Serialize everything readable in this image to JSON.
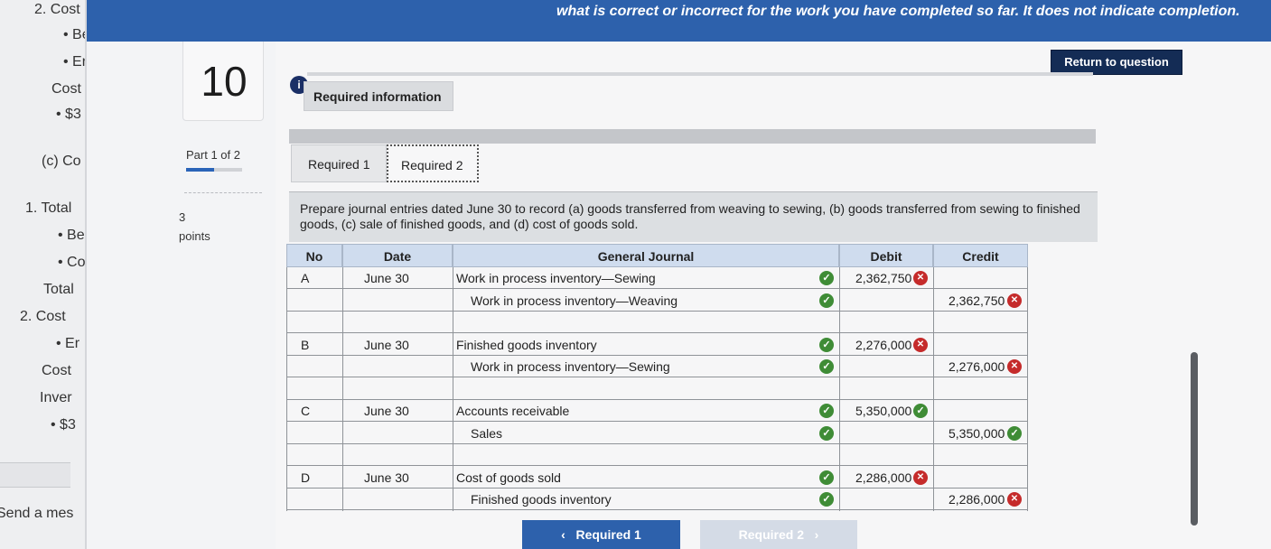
{
  "left_panel": {
    "items": [
      "2. Cost",
      "• Be",
      "• Er",
      "Cost",
      "• $3",
      "(c) Co",
      "1. Total",
      "• Be",
      "• Co",
      "Total",
      "2. Cost",
      "• Er",
      "Cost",
      "Inver",
      "• $3"
    ],
    "send_message": "Send a mes"
  },
  "question": {
    "number": "10",
    "part_label": "Part 1 of 2",
    "part_progress": 0.5,
    "points_value": "3",
    "points_label": "points"
  },
  "banner": {
    "text": "what is correct or incorrect for the work you have completed so far. It does not indicate completion."
  },
  "return_button": "Return to question",
  "info_icon": "i",
  "required_information": "Required information",
  "tabs": [
    {
      "label": "Required 1"
    },
    {
      "label": "Required 2"
    }
  ],
  "instruction": "Prepare journal entries dated June 30 to record (a) goods transferred from weaving to sewing, (b) goods transferred from sewing to finished goods, (c) sale of finished goods, and (d) cost of goods sold.",
  "journal": {
    "headers": {
      "no": "No",
      "date": "Date",
      "journal": "General Journal",
      "debit": "Debit",
      "credit": "Credit"
    },
    "rows": [
      {
        "no": "A",
        "date": "June 30",
        "account": "Work in process inventory—Sewing",
        "indent": false,
        "debit": "2,362,750",
        "debit_status": "incorrect",
        "credit": "",
        "credit_status": ""
      },
      {
        "no": "",
        "date": "",
        "account": "Work in process inventory—Weaving",
        "indent": true,
        "debit": "",
        "debit_status": "",
        "credit": "2,362,750",
        "credit_status": "incorrect"
      },
      {
        "no": "",
        "date": "",
        "account": "",
        "indent": false,
        "debit": "",
        "debit_status": "",
        "credit": "",
        "credit_status": ""
      },
      {
        "no": "B",
        "date": "June 30",
        "account": "Finished goods inventory",
        "indent": false,
        "debit": "2,276,000",
        "debit_status": "incorrect",
        "credit": "",
        "credit_status": ""
      },
      {
        "no": "",
        "date": "",
        "account": "Work in process inventory—Sewing",
        "indent": true,
        "debit": "",
        "debit_status": "",
        "credit": "2,276,000",
        "credit_status": "incorrect"
      },
      {
        "no": "",
        "date": "",
        "account": "",
        "indent": false,
        "debit": "",
        "debit_status": "",
        "credit": "",
        "credit_status": ""
      },
      {
        "no": "C",
        "date": "June 30",
        "account": "Accounts receivable",
        "indent": false,
        "debit": "5,350,000",
        "debit_status": "correct",
        "credit": "",
        "credit_status": ""
      },
      {
        "no": "",
        "date": "",
        "account": "Sales",
        "indent": true,
        "debit": "",
        "debit_status": "",
        "credit": "5,350,000",
        "credit_status": "correct"
      },
      {
        "no": "",
        "date": "",
        "account": "",
        "indent": false,
        "debit": "",
        "debit_status": "",
        "credit": "",
        "credit_status": ""
      },
      {
        "no": "D",
        "date": "June 30",
        "account": "Cost of goods sold",
        "indent": false,
        "debit": "2,286,000",
        "debit_status": "incorrect",
        "credit": "",
        "credit_status": ""
      },
      {
        "no": "",
        "date": "",
        "account": "Finished goods inventory",
        "indent": true,
        "debit": "",
        "debit_status": "",
        "credit": "2,286,000",
        "credit_status": "incorrect"
      }
    ]
  },
  "nav": {
    "prev": "Required 1",
    "next": "Required 2"
  },
  "colors": {
    "banner": "#2d61ac",
    "correct": "#3f8c36",
    "incorrect": "#c52b2b",
    "header": "#cfdcee"
  }
}
